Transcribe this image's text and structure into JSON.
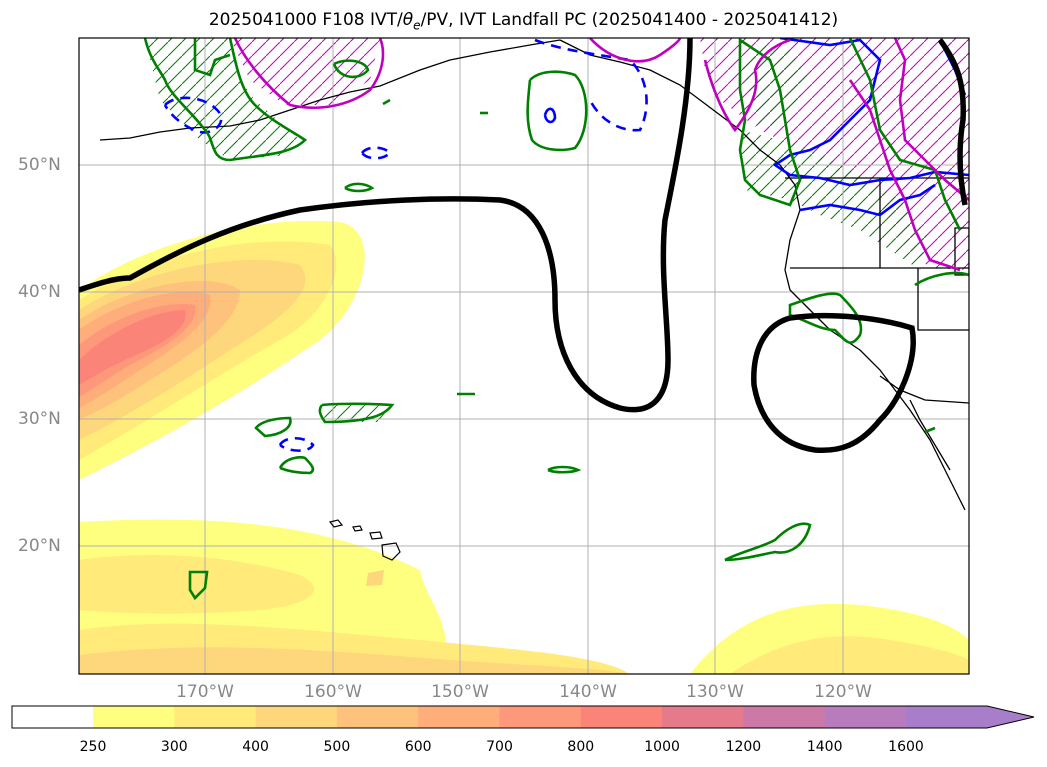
{
  "title": {
    "prefix": "2025041000 F108 IVT/",
    "theta_symbol": "θ",
    "theta_sub": "e",
    "suffix": "/PV, IVT Landfall PC (2025041400 - 2025041412)"
  },
  "map": {
    "lat_labels": [
      "50°N",
      "40°N",
      "30°N",
      "20°N"
    ],
    "lon_labels": [
      "170°W",
      "160°W",
      "150°W",
      "140°W",
      "130°W",
      "120°W"
    ]
  },
  "colorbar": {
    "ticks": [
      "250",
      "300",
      "400",
      "500",
      "600",
      "700",
      "800",
      "1000",
      "1200",
      "1400",
      "1600"
    ],
    "colors": [
      "#ffff7f",
      "#ffea7a",
      "#fed67b",
      "#fec27c",
      "#fead7b",
      "#fe987a",
      "#fb8478",
      "#e47a8a",
      "#cc79a7",
      "#b87bbc",
      "#a87ecb"
    ],
    "extend": "max"
  },
  "legend_colors": {
    "landfall_pc": "#000000",
    "pv_positive": "#008000",
    "pv_negative": "#0000ff",
    "theta_e": "#c000c0"
  }
}
